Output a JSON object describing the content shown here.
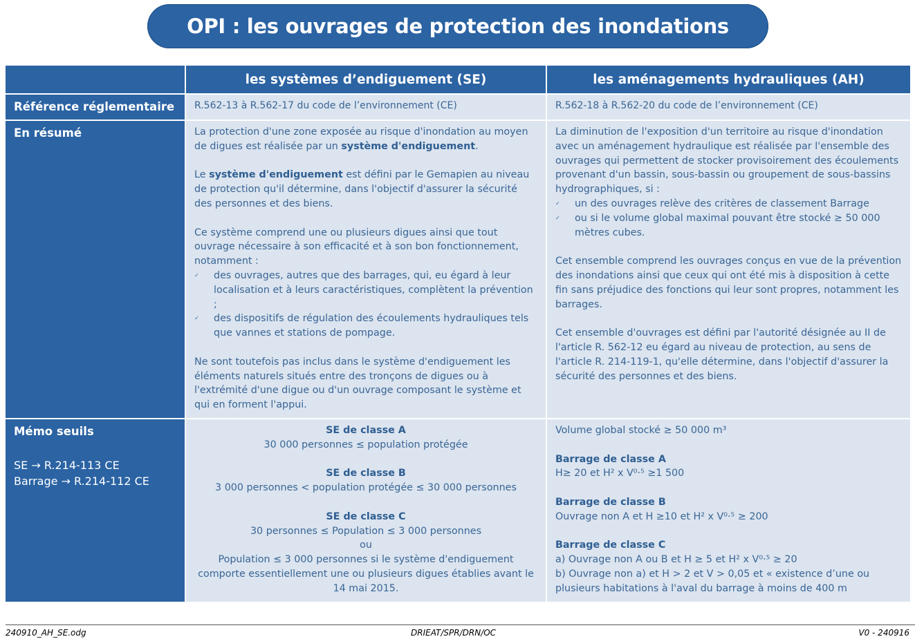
{
  "title": "OPI : les ouvrages de protection des inondations",
  "header": {
    "se": "les systèmes d’endiguement (SE)",
    "ah": "les aménagements hydrauliques (AH)"
  },
  "rows": {
    "reference": {
      "label": "Référence réglementaire",
      "se": "R.562-13 à R.562-17 du code de l’environnement (CE)",
      "ah": "R.562-18 à R.562-20 du code de l’environnement (CE)"
    },
    "resume": {
      "label": "En résumé",
      "se": {
        "p1_a": "La protection d'une zone exposée au risque d'inondation au moyen de digues est réalisée par un ",
        "p1_b": "système d'endiguement",
        "p1_c": ".",
        "p2_a": "Le ",
        "p2_b": "système d'endiguement",
        "p2_c": " est défini par le Gemapien au niveau de protection qu'il détermine, dans l'objectif d'assurer la sécurité des personnes et des biens.",
        "p3": "Ce système comprend une ou plusieurs digues ainsi que tout ouvrage nécessaire à son efficacité et à son bon fonctionnement, notamment :",
        "bullets": [
          "des ouvrages, autres que des barrages, qui, eu égard à leur localisation et à leurs caractéristiques, complètent la prévention ;",
          "des dispositifs de régulation des écoulements hydrauliques tels que vannes et stations de pompage."
        ],
        "p4": "Ne sont toutefois pas inclus dans le système d'endiguement les éléments naturels situés entre des tronçons de digues ou à l'extrémité d'une digue ou d'un ouvrage composant le système et qui en forment l'appui."
      },
      "ah": {
        "p1": "La diminution de l'exposition d'un territoire au risque d'inondation avec un aménagement hydraulique est réalisée par l'ensemble des ouvrages qui permettent de stocker provisoirement des écoulements provenant d'un bassin, sous-bassin ou groupement de sous-bassins hydrographiques, si :",
        "bullets": [
          "un des ouvrages relève des critères de classement Barrage",
          "ou si le volume global maximal pouvant être stocké ≥  50 000 mètres cubes."
        ],
        "p2": "Cet ensemble comprend les ouvrages conçus en vue de la prévention des inondations ainsi que ceux qui ont été mis à disposition à cette fin sans préjudice des fonctions qui leur sont propres, notamment les barrages.",
        "p3": "Cet ensemble d'ouvrages est défini par l'autorité désignée au II de l'article R. 562-12 eu égard au niveau de protection, au sens de l'article R. 214-119-1, qu'elle détermine, dans l'objectif d'assurer la sécurité des personnes et des biens."
      }
    },
    "memo": {
      "label": "Mémo seuils",
      "ref_se": "SE → R.214-113 CE",
      "ref_barrage": "Barrage → R.214-112 CE",
      "se": {
        "a_title": "SE de classe A",
        "a_text": "30 000 personnes ≤ population protégée",
        "b_title": "SE de classe B",
        "b_text": "3 000 personnes < population protégée ≤ 30 000 personnes",
        "c_title": "SE de classe C",
        "c_text1": "30 personnes ≤ Population ≤ 3 000 personnes",
        "c_or": "ou",
        "c_text2": "Population ≤ 3 000 personnes si le système d'endiguement comporte essentiellement une ou plusieurs digues établies avant le 14 mai 2015."
      },
      "ah": {
        "volume": "Volume global stocké  ≥  50 000 m³",
        "a_title": "Barrage de classe A",
        "a_text": " H≥ 20 et H² x V⁰·⁵ ≥1 500",
        "b_title": "Barrage de classe B",
        "b_text": "Ouvrage non A et H ≥10 et H² x V⁰·⁵ ≥ 200",
        "c_title": "Barrage de classe C",
        "c_text1": "a) Ouvrage non A ou B et H ≥ 5 et H² x V⁰·⁵ ≥ 20",
        "c_text2": "b) Ouvrage non a) et H > 2 et V > 0,05 et « existence d’une ou plusieurs habitations à l'aval du barrage à moins de 400 m"
      }
    }
  },
  "footer": {
    "left": "240910_AH_SE.odg",
    "center": "DRIEAT/SPR/DRN/OC",
    "right": "V0 - 240916"
  }
}
